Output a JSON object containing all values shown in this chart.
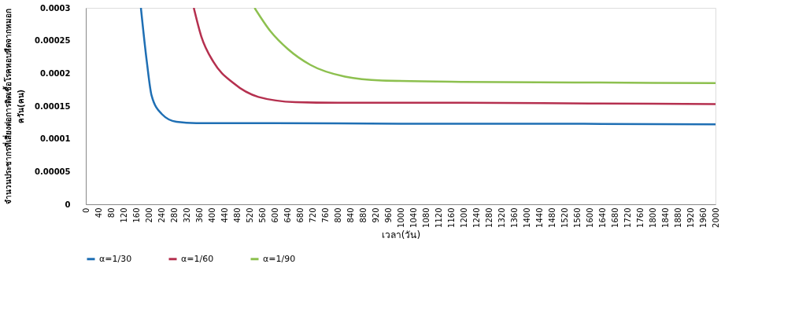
{
  "chart_data": {
    "type": "line",
    "xlabel": "เวลา(วัน)",
    "ylabel": "จำนวนประชากรที่เสี่ยงต่อการติดเชื้อโรคหอบหืดจากหมอก\nควัน(คน)",
    "xlim": [
      0,
      2000
    ],
    "xticks": [
      0,
      40,
      80,
      120,
      160,
      200,
      240,
      280,
      320,
      360,
      400,
      440,
      480,
      520,
      560,
      600,
      640,
      680,
      720,
      760,
      800,
      840,
      880,
      920,
      960,
      1000,
      1040,
      1080,
      1120,
      1160,
      1200,
      1240,
      1280,
      1320,
      1360,
      1400,
      1440,
      1480,
      1520,
      1560,
      1600,
      1640,
      1680,
      1720,
      1760,
      1800,
      1840,
      1880,
      1920,
      1960,
      2000
    ],
    "ylim": [
      0,
      0.0003
    ],
    "yticks": [
      0,
      {
        "value": 5e-05,
        "label": "0.00005"
      },
      0.0001,
      0.00015,
      0.0002,
      0.00025,
      0.0003
    ],
    "grid": false,
    "legend": "bottom",
    "marker": "none",
    "line_style": "solid",
    "series": [
      {
        "name": "α=1/30",
        "color": "#1f6fb4",
        "x": [
          175,
          194,
          209,
          241,
          288,
          351,
          600,
          1000,
          1500,
          2000
        ],
        "values": [
          0.0003,
          0.000217,
          0.000166,
          0.000138,
          0.000126,
          0.000124,
          0.000124,
          0.000123,
          0.000123,
          0.000122
        ]
      },
      {
        "name": "α=1/60",
        "color": "#b5304f",
        "x": [
          343,
          367,
          406,
          469,
          548,
          666,
          800,
          1200,
          1600,
          2000
        ],
        "values": [
          0.0003,
          0.000256,
          0.000217,
          0.000185,
          0.000164,
          0.000156,
          0.000155,
          0.000155,
          0.000154,
          0.000153
        ]
      },
      {
        "name": "α=1/90",
        "color": "#8dc04f",
        "x": [
          536,
          587,
          642,
          713,
          823,
          941,
          1200,
          1600,
          2000
        ],
        "values": [
          0.0003,
          0.000264,
          0.000237,
          0.000213,
          0.000195,
          0.000189,
          0.000187,
          0.000186,
          0.000185
        ]
      }
    ]
  }
}
